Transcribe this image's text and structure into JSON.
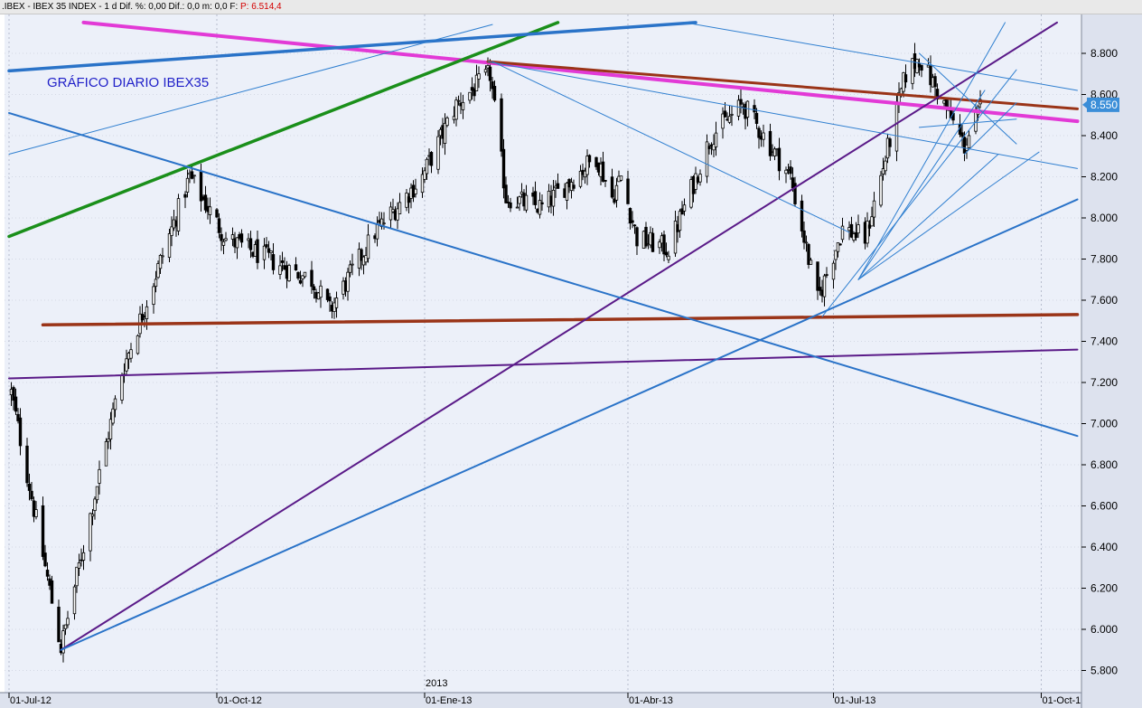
{
  "header": {
    "symbol": ".IBEX - IBEX 35 INDEX - 1 d",
    "stats": "Dif. %: 0,00  Dif.: 0,0  m: 0,0  F:",
    "price": "P: 6.514,4"
  },
  "colors": {
    "plot_bg": "#ecf0f9",
    "axis_bg": "#dde2ee",
    "candle": "#000000",
    "pink": "#e23ad6",
    "brown": "#9a3418",
    "green": "#1a8f1a",
    "blue_thick": "#2a73c8",
    "blue_thin": "#2f7fd0",
    "purple": "#5a1a88",
    "price_tag": "#3b8ed8"
  },
  "chart_data": {
    "type": "candlestick",
    "title": "GRÁFICO DIARIO IBEX35",
    "ylim": [
      5700,
      8940
    ],
    "yticks": [
      5800,
      6000,
      6200,
      6400,
      6600,
      6800,
      7000,
      7200,
      7400,
      7600,
      7800,
      8000,
      8200,
      8400,
      8600,
      8800
    ],
    "ytick_labels": [
      "5.800",
      "6.000",
      "6.200",
      "6.400",
      "6.600",
      "6.800",
      "7.000",
      "7.200",
      "7.400",
      "7.600",
      "7.800",
      "8.000",
      "8.200",
      "8.400",
      "8.600",
      "8.800"
    ],
    "x_labels": [
      "01-Jul-12",
      "01-Oct-12",
      "01-Ene-13",
      "01-Abr-13",
      "01-Jul-13",
      "01-Oct-1"
    ],
    "x_year_label": "2013",
    "last_price_label": "8.550",
    "last_price": 8550,
    "grid": true,
    "anchors": [
      {
        "date": "2012-07-02",
        "value": 7150
      },
      {
        "date": "2012-07-24",
        "value": 5910
      },
      {
        "date": "2012-08-20",
        "value": 7250
      },
      {
        "date": "2012-09-19",
        "value": 8200
      },
      {
        "date": "2012-10-05",
        "value": 7900
      },
      {
        "date": "2012-10-24",
        "value": 7800
      },
      {
        "date": "2012-11-12",
        "value": 7700
      },
      {
        "date": "2012-11-20",
        "value": 7550
      },
      {
        "date": "2012-12-10",
        "value": 7930
      },
      {
        "date": "2012-12-31",
        "value": 8200
      },
      {
        "date": "2013-01-15",
        "value": 8550
      },
      {
        "date": "2013-01-30",
        "value": 8700
      },
      {
        "date": "2013-02-06",
        "value": 8100
      },
      {
        "date": "2013-02-22",
        "value": 8050
      },
      {
        "date": "2013-03-18",
        "value": 8300
      },
      {
        "date": "2013-03-25",
        "value": 8100
      },
      {
        "date": "2013-03-29",
        "value": 8200
      },
      {
        "date": "2013-04-05",
        "value": 7900
      },
      {
        "date": "2013-04-19",
        "value": 7850
      },
      {
        "date": "2013-05-08",
        "value": 8400
      },
      {
        "date": "2013-05-22",
        "value": 8550
      },
      {
        "date": "2013-05-28",
        "value": 8450
      },
      {
        "date": "2013-06-12",
        "value": 8200
      },
      {
        "date": "2013-06-24",
        "value": 7600
      },
      {
        "date": "2013-07-05",
        "value": 7950
      },
      {
        "date": "2013-07-15",
        "value": 7900
      },
      {
        "date": "2013-07-22",
        "value": 8200
      },
      {
        "date": "2013-08-02",
        "value": 8700
      },
      {
        "date": "2013-08-08",
        "value": 8780
      },
      {
        "date": "2013-08-19",
        "value": 8550
      },
      {
        "date": "2013-08-28",
        "value": 8350
      },
      {
        "date": "2013-09-04",
        "value": 8530
      }
    ],
    "trendlines": [
      {
        "color": "pink",
        "width": 4,
        "from": [
          "2012-08-03",
          8950
        ],
        "to": [
          "2013-10-17",
          8470
        ]
      },
      {
        "color": "brown",
        "width": 3,
        "from": [
          "2013-01-29",
          8760
        ],
        "to": [
          "2013-10-17",
          8530
        ]
      },
      {
        "color": "brown",
        "width": 3.5,
        "from": [
          "2012-07-16",
          7480
        ],
        "to": [
          "2013-10-17",
          7530
        ]
      },
      {
        "color": "purple",
        "width": 2,
        "from": [
          "2012-07-01",
          7220
        ],
        "to": [
          "2013-10-17",
          7360
        ]
      },
      {
        "color": "purple",
        "width": 2,
        "from": [
          "2012-07-24",
          5900
        ],
        "to": [
          "2013-10-08",
          8950
        ]
      },
      {
        "color": "green",
        "width": 3.5,
        "from": [
          "2012-07-01",
          7910
        ],
        "to": [
          "2013-03-01",
          8950
        ]
      },
      {
        "color": "blue_thick",
        "width": 3.5,
        "from": [
          "2012-07-01",
          8715
        ],
        "to": [
          "2013-05-01",
          8950
        ]
      },
      {
        "color": "blue_thick",
        "width": 2,
        "from": [
          "2012-07-01",
          8510
        ],
        "to": [
          "2013-10-17",
          6940
        ]
      },
      {
        "color": "blue_thick",
        "width": 2,
        "from": [
          "2012-07-24",
          5900
        ],
        "to": [
          "2013-10-17",
          8090
        ]
      },
      {
        "color": "blue_thin",
        "width": 1,
        "from": [
          "2012-07-01",
          8310
        ],
        "to": [
          "2013-01-31",
          8940
        ]
      },
      {
        "color": "blue_thin",
        "width": 1,
        "from": [
          "2013-01-29",
          8760
        ],
        "to": [
          "2013-10-17",
          8240
        ]
      },
      {
        "color": "blue_thin",
        "width": 1,
        "from": [
          "2013-04-26",
          8950
        ],
        "to": [
          "2013-10-17",
          8620
        ]
      },
      {
        "color": "blue_thin",
        "width": 1,
        "from": [
          "2013-01-31",
          8760
        ],
        "to": [
          "2013-07-08",
          7930
        ]
      },
      {
        "color": "blue_thin",
        "width": 1,
        "from": [
          "2013-06-26",
          7520
        ],
        "to": [
          "2013-09-20",
          8720
        ]
      },
      {
        "color": "blue_thin",
        "width": 1,
        "from": [
          "2013-07-12",
          7700
        ],
        "to": [
          "2013-09-15",
          8950
        ]
      },
      {
        "color": "blue_thin",
        "width": 1,
        "from": [
          "2013-07-12",
          7700
        ],
        "to": [
          "2013-09-06",
          8620
        ]
      },
      {
        "color": "blue_thin",
        "width": 1,
        "from": [
          "2013-07-12",
          7700
        ],
        "to": [
          "2013-09-12",
          8310
        ]
      },
      {
        "color": "blue_thin",
        "width": 1,
        "from": [
          "2013-07-12",
          7700
        ],
        "to": [
          "2013-09-30",
          8320
        ]
      },
      {
        "color": "blue_thin",
        "width": 1,
        "from": [
          "2013-08-08",
          8800
        ],
        "to": [
          "2013-09-20",
          8360
        ]
      },
      {
        "color": "blue_thin",
        "width": 1,
        "from": [
          "2013-08-08",
          8440
        ],
        "to": [
          "2013-09-20",
          8480
        ]
      },
      {
        "color": "blue_thin",
        "width": 1,
        "from": [
          "2013-08-28",
          8310
        ],
        "to": [
          "2013-09-20",
          8560
        ]
      }
    ]
  }
}
